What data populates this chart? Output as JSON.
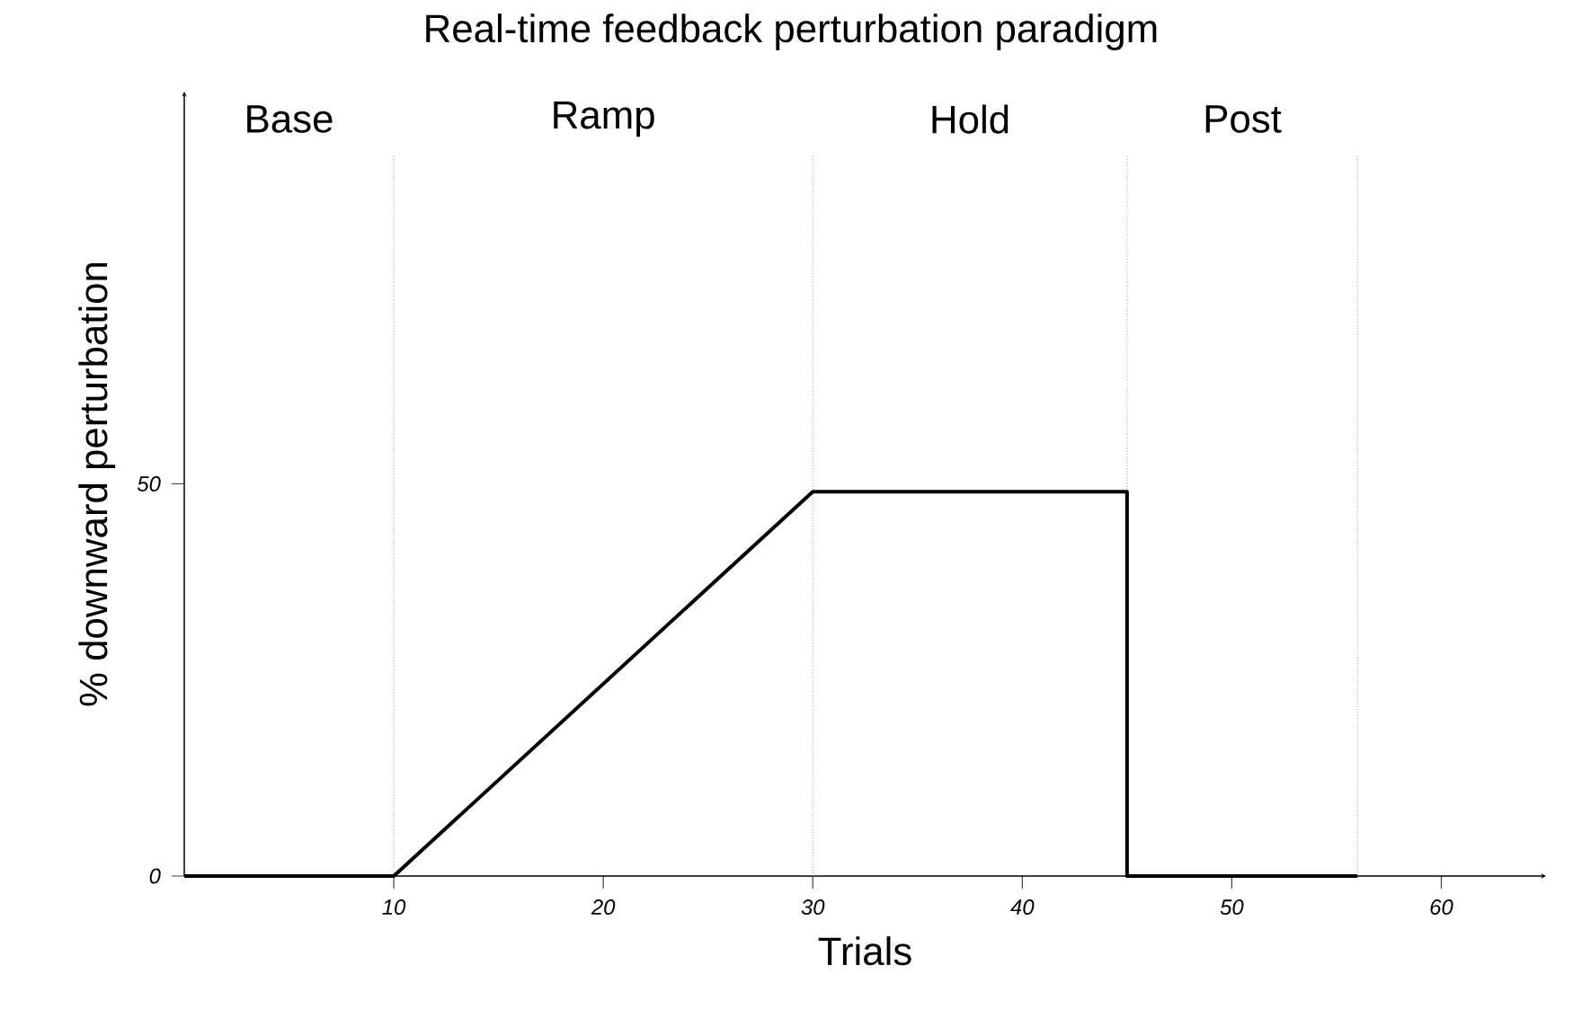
{
  "chart_data": {
    "type": "line",
    "title": "Real-time feedback perturbation paradigm",
    "xlabel": "Trials",
    "ylabel": "% downward perturbation",
    "x": [
      0,
      10,
      30,
      45,
      45,
      56
    ],
    "series": [
      {
        "color": "#000000",
        "values": [
          0,
          0,
          49,
          49,
          0,
          0
        ]
      }
    ],
    "xlim": [
      0,
      65
    ],
    "ylim": [
      0,
      100
    ],
    "xticks": [
      10,
      20,
      30,
      40,
      50,
      60
    ],
    "yticks": [
      0,
      50
    ],
    "ref_lines": [
      {
        "axis": "x",
        "value": 10,
        "color": "#b0b0b0",
        "line_style": "dotted"
      },
      {
        "axis": "x",
        "value": 30,
        "color": "#b0b0b0",
        "line_style": "dotted"
      },
      {
        "axis": "x",
        "value": 45,
        "color": "#b0b0b0",
        "line_style": "dotted"
      },
      {
        "axis": "x",
        "value": 56,
        "color": "#b0b0b0",
        "line_style": "dotted"
      }
    ],
    "annotations": [
      "Base",
      "Ramp",
      "Hold",
      "Post"
    ],
    "marker": "none",
    "line_style": "solid"
  }
}
